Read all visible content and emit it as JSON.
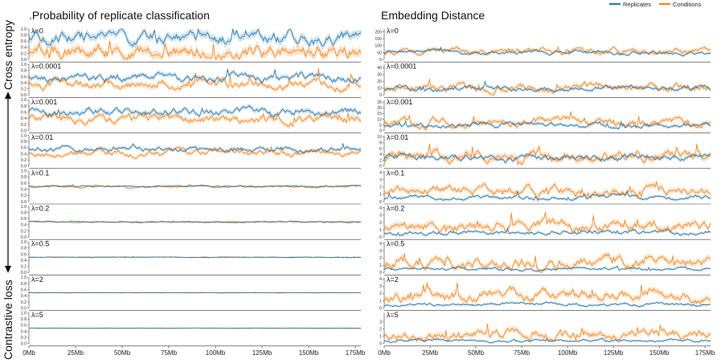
{
  "legend": {
    "items": [
      {
        "label": "Replicates",
        "color": "#1f77b4"
      },
      {
        "label": "Conditions",
        "color": "#ff7f0e"
      }
    ]
  },
  "side_labels": {
    "top": "Cross entropy",
    "bottom": "Contrastive loss"
  },
  "chart_data": [
    {
      "type": "line",
      "title": ".Probability of replicate classification",
      "xlabel": "",
      "ylabel": "",
      "x_range_mb": [
        0,
        178
      ],
      "x_ticks": [
        "0Mb",
        "25Mb",
        "50Mb",
        "75Mb",
        "100Mb",
        "125Mb",
        "150Mb",
        "175Mb"
      ],
      "x_tick_values": [
        0,
        25,
        50,
        75,
        100,
        125,
        150,
        175
      ],
      "series_names": [
        "Replicates",
        "Conditions"
      ],
      "confidence_band": true,
      "panels": [
        {
          "lambda": "λ=0",
          "ylim": [
            0,
            1.0
          ],
          "y_ticks": [
            "0.0",
            "0.2",
            "0.4",
            "0.6",
            "0.8",
            "1.0"
          ],
          "y_tick_values": [
            0,
            0.2,
            0.4,
            0.6,
            0.8,
            1.0
          ],
          "rep_level": 0.7,
          "rep_amp": 0.3,
          "cond_level": 0.25,
          "cond_amp": 0.35
        },
        {
          "lambda": "λ=0.0001",
          "ylim": [
            0,
            1.0
          ],
          "y_ticks": [
            "0.0",
            "0.2",
            "0.4",
            "0.6",
            "0.8",
            "1.0"
          ],
          "y_tick_values": [
            0,
            0.2,
            0.4,
            0.6,
            0.8,
            1.0
          ],
          "rep_level": 0.55,
          "rep_amp": 0.18,
          "cond_level": 0.35,
          "cond_amp": 0.2
        },
        {
          "lambda": "λ=0.001",
          "ylim": [
            0,
            1.0
          ],
          "y_ticks": [
            "0.0",
            "0.2",
            "0.4",
            "0.6",
            "0.8",
            "1.0"
          ],
          "y_tick_values": [
            0,
            0.2,
            0.4,
            0.6,
            0.8,
            1.0
          ],
          "rep_level": 0.6,
          "rep_amp": 0.18,
          "cond_level": 0.35,
          "cond_amp": 0.2
        },
        {
          "lambda": "λ=0.01",
          "ylim": [
            0,
            1.0
          ],
          "y_ticks": [
            "0.0",
            "0.2",
            "0.4",
            "0.6",
            "0.8",
            "1.0"
          ],
          "y_tick_values": [
            0,
            0.2,
            0.4,
            0.6,
            0.8,
            1.0
          ],
          "rep_level": 0.55,
          "rep_amp": 0.12,
          "cond_level": 0.42,
          "cond_amp": 0.14
        },
        {
          "lambda": "λ=0.1",
          "ylim": [
            0,
            1.0
          ],
          "y_ticks": [
            "0.0",
            "0.2",
            "0.4",
            "0.6",
            "0.8",
            "1.0"
          ],
          "y_tick_values": [
            0,
            0.2,
            0.4,
            0.6,
            0.8,
            1.0
          ],
          "rep_level": 0.5,
          "rep_amp": 0.03,
          "cond_level": 0.48,
          "cond_amp": 0.05
        },
        {
          "lambda": "λ=0.2",
          "ylim": [
            0,
            1.0
          ],
          "y_ticks": [
            "0.0",
            "0.2",
            "0.4",
            "0.6",
            "0.8",
            "1.0"
          ],
          "y_tick_values": [
            0,
            0.2,
            0.4,
            0.6,
            0.8,
            1.0
          ],
          "rep_level": 0.5,
          "rep_amp": 0.02,
          "cond_level": 0.49,
          "cond_amp": 0.03
        },
        {
          "lambda": "λ=0.5",
          "ylim": [
            0,
            1.0
          ],
          "y_ticks": [
            "0.0",
            "0.2",
            "0.4",
            "0.6",
            "0.8",
            "1.0"
          ],
          "y_tick_values": [
            0,
            0.2,
            0.4,
            0.6,
            0.8,
            1.0
          ],
          "rep_level": 0.5,
          "rep_amp": 0.01,
          "cond_level": 0.5,
          "cond_amp": 0.015
        },
        {
          "lambda": "λ=2",
          "ylim": [
            0,
            1.0
          ],
          "y_ticks": [
            "0.0",
            "0.2",
            "0.4",
            "0.6",
            "0.8",
            "1.0"
          ],
          "y_tick_values": [
            0,
            0.2,
            0.4,
            0.6,
            0.8,
            1.0
          ],
          "rep_level": 0.5,
          "rep_amp": 0.005,
          "cond_level": 0.5,
          "cond_amp": 0.008
        },
        {
          "lambda": "λ=5",
          "ylim": [
            0,
            1.0
          ],
          "y_ticks": [
            "0.0",
            "0.2",
            "0.4",
            "0.6",
            "0.8",
            "1.0"
          ],
          "y_tick_values": [
            0,
            0.2,
            0.4,
            0.6,
            0.8,
            1.0
          ],
          "rep_level": 0.5,
          "rep_amp": 0.004,
          "cond_level": 0.5,
          "cond_amp": 0.006
        }
      ]
    },
    {
      "type": "line",
      "title": "Embedding Distance",
      "xlabel": "",
      "ylabel": "",
      "x_range_mb": [
        0,
        178
      ],
      "x_ticks": [
        "0Mb",
        "25Mb",
        "50Mb",
        "75Mb",
        "100Mb",
        "125Mb",
        "150Mb",
        "175Mb"
      ],
      "x_tick_values": [
        0,
        25,
        50,
        75,
        100,
        125,
        150,
        175
      ],
      "series_names": [
        "Replicates",
        "Conditions"
      ],
      "confidence_band": true,
      "panels": [
        {
          "lambda": "λ=0",
          "ylim": [
            0,
            220
          ],
          "y_ticks": [
            "0",
            "50",
            "100",
            "150",
            "200"
          ],
          "y_tick_values": [
            0,
            50,
            100,
            150,
            200
          ],
          "rep_level": 50,
          "rep_amp": 20,
          "cond_level": 60,
          "cond_amp": 30
        },
        {
          "lambda": "λ=0.0001",
          "ylim": [
            0,
            45
          ],
          "y_ticks": [
            "0",
            "10",
            "20",
            "30",
            "40"
          ],
          "y_tick_values": [
            0,
            10,
            20,
            30,
            40
          ],
          "rep_level": 10,
          "rep_amp": 5,
          "cond_level": 12,
          "cond_amp": 8
        },
        {
          "lambda": "λ=0.001",
          "ylim": [
            0,
            27
          ],
          "y_ticks": [
            "0",
            "5",
            "10",
            "15",
            "20",
            "25"
          ],
          "y_tick_values": [
            0,
            5,
            10,
            15,
            20,
            25
          ],
          "rep_level": 5,
          "rep_amp": 3,
          "cond_level": 7,
          "cond_amp": 5
        },
        {
          "lambda": "λ=0.01",
          "ylim": [
            0,
            10.5
          ],
          "y_ticks": [
            "0",
            "2",
            "4",
            "6",
            "8",
            "10"
          ],
          "y_tick_values": [
            0,
            2,
            4,
            6,
            8,
            10
          ],
          "rep_level": 3,
          "rep_amp": 1.5,
          "cond_level": 3.5,
          "cond_amp": 2.5
        },
        {
          "lambda": "λ=0.1",
          "ylim": [
            0,
            4.2
          ],
          "y_ticks": [
            "0",
            "1",
            "2",
            "3",
            "4"
          ],
          "y_tick_values": [
            0,
            1,
            2,
            3,
            4
          ],
          "rep_level": 0.6,
          "rep_amp": 0.4,
          "cond_level": 1.5,
          "cond_amp": 0.9
        },
        {
          "lambda": "λ=0.2",
          "ylim": [
            0,
            4.2
          ],
          "y_ticks": [
            "0",
            "1",
            "2",
            "3",
            "4"
          ],
          "y_tick_values": [
            0,
            1,
            2,
            3,
            4
          ],
          "rep_level": 0.6,
          "rep_amp": 0.4,
          "cond_level": 1.5,
          "cond_amp": 1.0
        },
        {
          "lambda": "λ=0.5",
          "ylim": [
            0,
            4.2
          ],
          "y_ticks": [
            "0",
            "1",
            "2",
            "3",
            "4"
          ],
          "y_tick_values": [
            0,
            1,
            2,
            3,
            4
          ],
          "rep_level": 0.5,
          "rep_amp": 0.3,
          "cond_level": 1.5,
          "cond_amp": 1.0
        },
        {
          "lambda": "λ=2",
          "ylim": [
            0,
            4.2
          ],
          "y_ticks": [
            "0",
            "1",
            "2",
            "3",
            "4"
          ],
          "y_tick_values": [
            0,
            1,
            2,
            3,
            4
          ],
          "rep_level": 0.5,
          "rep_amp": 0.3,
          "cond_level": 1.6,
          "cond_amp": 1.0
        },
        {
          "lambda": "λ=5",
          "ylim": [
            0,
            4.2
          ],
          "y_ticks": [
            "0",
            "1",
            "2",
            "3"
          ],
          "y_tick_values": [
            0,
            1,
            2,
            3
          ],
          "rep_level": 0.4,
          "rep_amp": 0.25,
          "cond_level": 1.3,
          "cond_amp": 0.9
        }
      ]
    }
  ]
}
